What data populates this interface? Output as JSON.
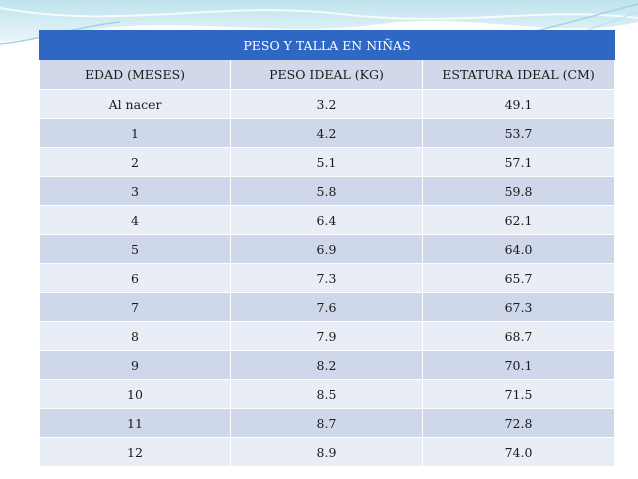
{
  "table": {
    "title": "PESO Y TALLA EN NIÑAS",
    "headers": [
      "EDAD (MESES)",
      "PESO IDEAL (KG)",
      "ESTATURA IDEAL (CM)"
    ],
    "rows": [
      [
        "Al nacer",
        "3.2",
        "49.1"
      ],
      [
        "1",
        "4.2",
        "53.7"
      ],
      [
        "2",
        "5.1",
        "57.1"
      ],
      [
        "3",
        "5.8",
        "59.8"
      ],
      [
        "4",
        "6.4",
        "62.1"
      ],
      [
        "5",
        "6.9",
        "64.0"
      ],
      [
        "6",
        "7.3",
        "65.7"
      ],
      [
        "7",
        "7.6",
        "67.3"
      ],
      [
        "8",
        "7.9",
        "68.7"
      ],
      [
        "9",
        "8.2",
        "70.1"
      ],
      [
        "10",
        "8.5",
        "71.5"
      ],
      [
        "11",
        "8.7",
        "72.8"
      ],
      [
        "12",
        "8.9",
        "74.0"
      ]
    ]
  },
  "colors": {
    "title_bg": "#2f68c4",
    "header_bg": "#d0d8ea",
    "row_light": "#e9edf5",
    "row_dark": "#cfd7ea"
  }
}
